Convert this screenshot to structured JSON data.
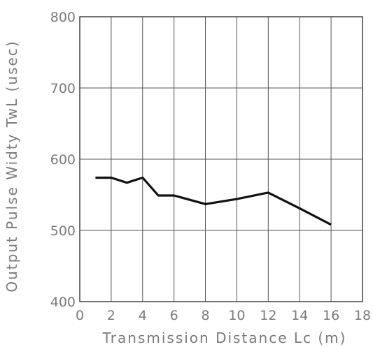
{
  "chart_data": {
    "type": "line",
    "title": "",
    "xlabel": "Transmission Distance Lc (m)",
    "ylabel": "Output Pulse Widty TwL (usec)",
    "xlim": [
      0,
      18
    ],
    "ylim": [
      400,
      800
    ],
    "x_ticks": [
      "0",
      "2",
      "4",
      "6",
      "8",
      "10",
      "12",
      "14",
      "16",
      "18"
    ],
    "y_ticks": [
      "400",
      "500",
      "600",
      "700",
      "800"
    ],
    "grid": true,
    "series": [
      {
        "x": [
          1,
          2,
          3,
          4,
          5,
          6,
          8,
          10,
          12,
          14,
          16
        ],
        "y": [
          574,
          574,
          567,
          574,
          549,
          549,
          537,
          544,
          553,
          531,
          508
        ]
      }
    ]
  }
}
